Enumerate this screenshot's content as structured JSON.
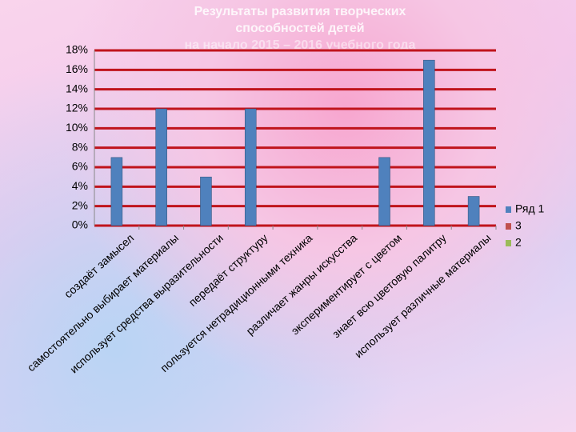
{
  "chart_data": {
    "type": "bar",
    "title": [
      "Результаты развития творческих",
      "способностей детей",
      "на начало 2015 – 2016 учебного года"
    ],
    "categories": [
      "создаёт замысел",
      "самостоятельно выбирает материалы",
      "использует средства выразительности",
      "передаёт структуру",
      "пользуется нетрадиционными техника",
      "различает жанры искусства",
      "экспериментирует с цветом",
      "знает всю цветовую палитру",
      "использует различные материалы"
    ],
    "series": [
      {
        "name": "Ряд 1",
        "color": "#4f81bd",
        "values": [
          7,
          12,
          5,
          12,
          0,
          0,
          7,
          17,
          3
        ]
      },
      {
        "name": "3",
        "color": "#c0504d",
        "values": [
          null,
          null,
          null,
          null,
          null,
          null,
          null,
          null,
          null
        ]
      },
      {
        "name": "2",
        "color": "#9bbb59",
        "values": [
          null,
          null,
          null,
          null,
          null,
          null,
          null,
          null,
          null
        ]
      }
    ],
    "ylim": [
      0,
      18
    ],
    "yticks": [
      {
        "value": 0,
        "label": "0%"
      },
      {
        "value": 2,
        "label": "2%"
      },
      {
        "value": 4,
        "label": "4%"
      },
      {
        "value": 6,
        "label": "6%"
      },
      {
        "value": 8,
        "label": "8%"
      },
      {
        "value": 10,
        "label": "10%"
      },
      {
        "value": 12,
        "label": "12%"
      },
      {
        "value": 14,
        "label": "14%"
      },
      {
        "value": 16,
        "label": "16%"
      },
      {
        "value": 18,
        "label": "18%"
      }
    ],
    "grid": true,
    "grid_color": "#c0141c",
    "legend": "right"
  }
}
